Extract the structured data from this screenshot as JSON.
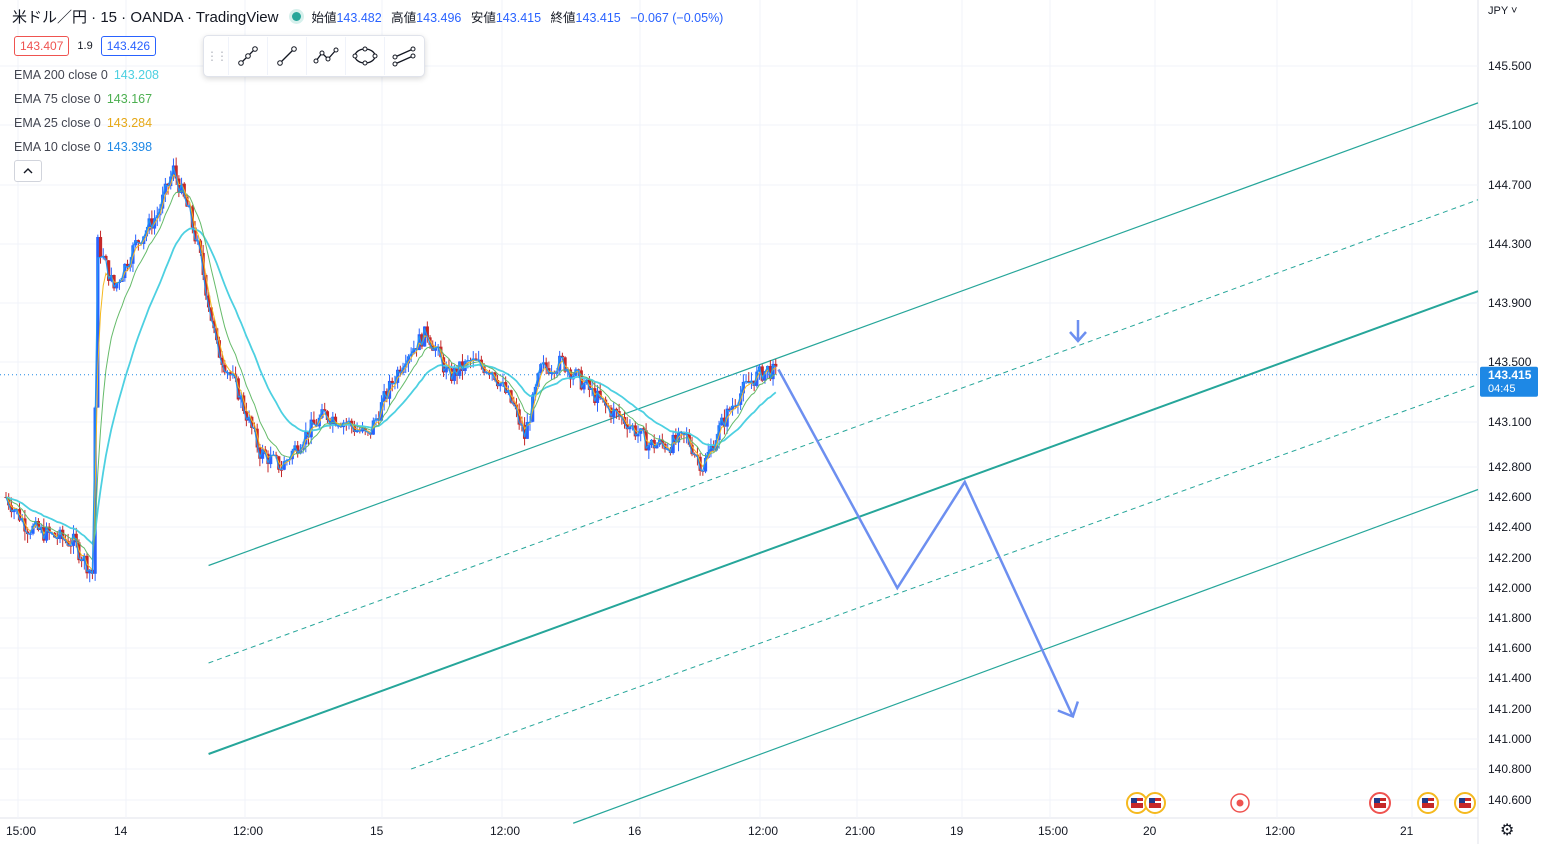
{
  "header": {
    "symbol": "米ドル／円 · 15 · OANDA · TradingView",
    "open_label": "始値",
    "open": "143.482",
    "high_label": "高値",
    "high": "143.496",
    "low_label": "安値",
    "low": "143.415",
    "close_label": "終値",
    "close": "143.415",
    "change": "−0.067 (−0.05%)"
  },
  "quote": {
    "sell": "143.407",
    "spread": "1.9",
    "buy": "143.426"
  },
  "indicators": [
    {
      "label": "EMA 200 close 0",
      "value": "143.208",
      "color": "#4dd0e1"
    },
    {
      "label": "EMA 75 close 0",
      "value": "143.167",
      "color": "#66bb6a"
    },
    {
      "label": "EMA 25 close 0",
      "value": "143.284",
      "color": "#f5b91f"
    },
    {
      "label": "EMA 10 close 0",
      "value": "143.398",
      "color": "#2196f3"
    }
  ],
  "toolbar": {
    "grip_icon": "drag-handle-icon",
    "tools": [
      "segment-tool-icon",
      "line-tool-icon",
      "polyline-tool-icon",
      "ellipse-tool-icon",
      "parallel-channel-tool-icon"
    ]
  },
  "axis": {
    "currency": "JPY",
    "settings_icon": "gear-icon"
  },
  "last_price": {
    "value": "143.415",
    "countdown": "04:45"
  },
  "colors": {
    "up": "#2962ff",
    "down": "#c62828",
    "channel": "#26a69a",
    "projection": "#6d8ff0",
    "last_price_bg": "#1e88e5"
  },
  "event_icons": [
    "us-flag-icon",
    "us-flag-icon",
    "record-icon",
    "us-flag-icon",
    "us-flag-icon",
    "us-flag-icon"
  ],
  "chart_data": {
    "type": "candlestick",
    "title": "米ドル／円 · 15 · OANDA",
    "y_ticks": [
      "145.500",
      "145.100",
      "144.700",
      "144.300",
      "143.900",
      "143.500",
      "143.100",
      "142.800",
      "142.600",
      "142.400",
      "142.200",
      "142.000",
      "141.800",
      "141.600",
      "141.400",
      "141.200",
      "141.000",
      "140.800",
      "140.600"
    ],
    "x_ticks": [
      "15:00",
      "14",
      "12:00",
      "15",
      "12:00",
      "16",
      "12:00",
      "21:00",
      "19",
      "15:00",
      "20",
      "12:00",
      "21"
    ],
    "close_path": [
      {
        "x": 0,
        "y": 142.6
      },
      {
        "x": 8,
        "y": 142.4
      },
      {
        "x": 16,
        "y": 142.35
      },
      {
        "x": 25,
        "y": 142.3
      },
      {
        "x": 32,
        "y": 142.1
      },
      {
        "x": 34,
        "y": 144.3
      },
      {
        "x": 40,
        "y": 144.0
      },
      {
        "x": 48,
        "y": 144.3
      },
      {
        "x": 56,
        "y": 144.5
      },
      {
        "x": 62,
        "y": 144.8
      },
      {
        "x": 68,
        "y": 144.5
      },
      {
        "x": 72,
        "y": 144.2
      },
      {
        "x": 78,
        "y": 143.6
      },
      {
        "x": 86,
        "y": 143.3
      },
      {
        "x": 94,
        "y": 142.9
      },
      {
        "x": 102,
        "y": 142.8
      },
      {
        "x": 110,
        "y": 143.0
      },
      {
        "x": 118,
        "y": 143.15
      },
      {
        "x": 126,
        "y": 143.1
      },
      {
        "x": 134,
        "y": 143.0
      },
      {
        "x": 140,
        "y": 143.25
      },
      {
        "x": 148,
        "y": 143.55
      },
      {
        "x": 156,
        "y": 143.7
      },
      {
        "x": 164,
        "y": 143.4
      },
      {
        "x": 172,
        "y": 143.5
      },
      {
        "x": 180,
        "y": 143.45
      },
      {
        "x": 188,
        "y": 143.2
      },
      {
        "x": 192,
        "y": 143.0
      },
      {
        "x": 198,
        "y": 143.45
      },
      {
        "x": 206,
        "y": 143.5
      },
      {
        "x": 214,
        "y": 143.35
      },
      {
        "x": 222,
        "y": 143.2
      },
      {
        "x": 230,
        "y": 143.1
      },
      {
        "x": 238,
        "y": 142.95
      },
      {
        "x": 246,
        "y": 142.95
      },
      {
        "x": 252,
        "y": 143.0
      },
      {
        "x": 258,
        "y": 142.8
      },
      {
        "x": 264,
        "y": 143.05
      },
      {
        "x": 270,
        "y": 143.25
      },
      {
        "x": 276,
        "y": 143.38
      },
      {
        "x": 282,
        "y": 143.45
      },
      {
        "x": 285,
        "y": 143.42
      }
    ],
    "channel": {
      "upper_line": [
        {
          "x": 75,
          "y": 142.15
        },
        {
          "x": 545,
          "y": 145.25
        }
      ],
      "upper_dashed": [
        {
          "x": 75,
          "y": 141.5
        },
        {
          "x": 545,
          "y": 144.6
        }
      ],
      "mid_line": [
        {
          "x": 75,
          "y": 140.9
        },
        {
          "x": 545,
          "y": 143.98
        }
      ],
      "lower_dashed": [
        {
          "x": 150,
          "y": 140.8
        },
        {
          "x": 545,
          "y": 143.35
        }
      ],
      "lower_line": [
        {
          "x": 210,
          "y": 140.45
        },
        {
          "x": 545,
          "y": 142.65
        }
      ]
    },
    "projection": [
      {
        "x": 286,
        "y": 143.45
      },
      {
        "x": 330,
        "y": 142.0
      },
      {
        "x": 355,
        "y": 142.7
      },
      {
        "x": 395,
        "y": 141.15
      }
    ]
  }
}
